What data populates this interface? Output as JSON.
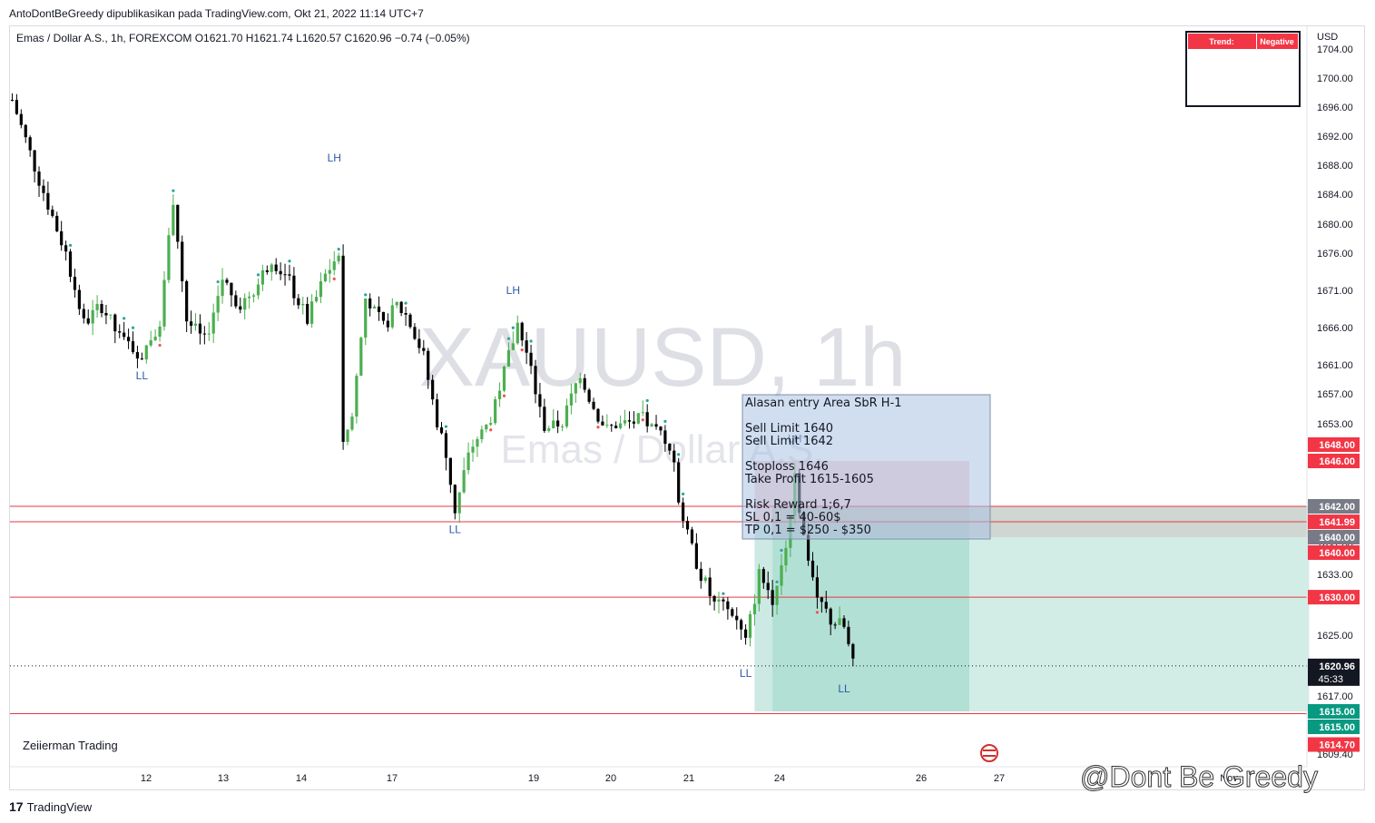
{
  "header": {
    "publisher_line": "AntoDontBeGreedy dipublikasikan pada TradingView.com, Okt 21, 2022 11:14 UTC+7"
  },
  "legend": {
    "symbol_line": "Emas / Dollar A.S., 1h, FOREXCOM  O1621.70  H1621.74  L1620.57  C1620.96  −0.74 (−0.05%)"
  },
  "watermark": {
    "symbol": "XAUUSD, 1h",
    "name": "Emas / Dollar A.S."
  },
  "trend_table": {
    "label": "Trend:",
    "value": "Negative",
    "color": "#f23645"
  },
  "currency_label": "USD",
  "author_label": "Zeiierman Trading",
  "footer": {
    "brand": "TradingView",
    "credit": "@Dont Be Greedy"
  },
  "note_box": {
    "lines": [
      "Alasan entry Area SbR H-1",
      "",
      "Sell Limit 1640",
      "Sell Limit 1642",
      "",
      "Stoploss 1646",
      "Take Profit 1615-1605",
      "",
      "Risk Reward 1;6,7",
      "SL 0,1 = 40-60$",
      "TP 0,1 = $250 - $350"
    ]
  },
  "colors": {
    "up": "#4caf50",
    "down": "#000000",
    "red_line": "#e53946",
    "label_red": "#f23645",
    "label_green": "#089981",
    "label_gray": "#787b86",
    "label_dark": "#131722"
  },
  "chart_data": {
    "type": "candlestick",
    "title": "XAUUSD, 1h",
    "x_ticks": [
      "12",
      "13",
      "14",
      "17",
      "19",
      "20",
      "21",
      "24",
      "26",
      "27",
      "Nov"
    ],
    "y_ticks": [
      1704.0,
      1700.0,
      1696.0,
      1692.0,
      1688.0,
      1684.0,
      1680.0,
      1676.0,
      1671.0,
      1666.0,
      1661.0,
      1657.0,
      1653.0,
      1637.0,
      1633.0,
      1625.0,
      1617.0,
      1609.4
    ],
    "y_range": [
      1608,
      1705
    ],
    "last_price": 1620.96,
    "countdown": "45:33",
    "horizontal_lines": [
      1640.0,
      1642.0,
      1630.0,
      1614.7
    ],
    "price_labels": [
      {
        "value": 1648.0,
        "kind": "red"
      },
      {
        "value": 1646.0,
        "kind": "red"
      },
      {
        "value": 1642.0,
        "kind": "gray"
      },
      {
        "value": 1641.99,
        "kind": "red"
      },
      {
        "value": 1640.0,
        "kind": "gray"
      },
      {
        "value": 1640.0,
        "kind": "red"
      },
      {
        "value": 1630.0,
        "kind": "red"
      },
      {
        "value": 1620.96,
        "kind": "dark"
      },
      {
        "value": 1615.0,
        "kind": "green"
      },
      {
        "value": 1615.0,
        "kind": "green"
      },
      {
        "value": 1614.7,
        "kind": "red"
      }
    ],
    "swing_labels": [
      {
        "text": "LH",
        "index": 72,
        "price": 1688.5
      },
      {
        "text": "LL",
        "index": 29,
        "price": 1659.0
      },
      {
        "text": "LH",
        "index": 112,
        "price": 1670.5
      },
      {
        "text": "LL",
        "index": 99,
        "price": 1638.5
      },
      {
        "text": "LH",
        "index": 175,
        "price": 1648.5
      },
      {
        "text": "LL",
        "index": 164,
        "price": 1619.5
      },
      {
        "text": "LL",
        "index": 186,
        "price": 1617.5
      }
    ],
    "positions": [
      {
        "entry": 1640.0,
        "stop": 1646.0,
        "target": 1615.0,
        "start_index": 166,
        "end_index": 214
      },
      {
        "entry": 1642.0,
        "stop": 1641.99,
        "target": 1615.0,
        "start_index": 170,
        "end_index": 290
      }
    ],
    "anchor_points": [
      {
        "index": 0,
        "price": 1697.0
      },
      {
        "index": 6,
        "price": 1686.0
      },
      {
        "index": 12,
        "price": 1676.0
      },
      {
        "index": 16,
        "price": 1666.5
      },
      {
        "index": 20,
        "price": 1669.0
      },
      {
        "index": 24,
        "price": 1664.5
      },
      {
        "index": 29,
        "price": 1662.5
      },
      {
        "index": 33,
        "price": 1667.0
      },
      {
        "index": 36,
        "price": 1683.5
      },
      {
        "index": 39,
        "price": 1667.0
      },
      {
        "index": 43,
        "price": 1664.0
      },
      {
        "index": 47,
        "price": 1672.5
      },
      {
        "index": 51,
        "price": 1669.0
      },
      {
        "index": 55,
        "price": 1672.0
      },
      {
        "index": 58,
        "price": 1675.5
      },
      {
        "index": 62,
        "price": 1672.0
      },
      {
        "index": 66,
        "price": 1667.0
      },
      {
        "index": 70,
        "price": 1673.0
      },
      {
        "index": 73,
        "price": 1676.0
      },
      {
        "index": 74,
        "price": 1649.0
      },
      {
        "index": 76,
        "price": 1654.0
      },
      {
        "index": 79,
        "price": 1670.0
      },
      {
        "index": 83,
        "price": 1666.0
      },
      {
        "index": 86,
        "price": 1669.0
      },
      {
        "index": 89,
        "price": 1667.0
      },
      {
        "index": 92,
        "price": 1662.0
      },
      {
        "index": 95,
        "price": 1653.0
      },
      {
        "index": 99,
        "price": 1641.5
      },
      {
        "index": 103,
        "price": 1648.0
      },
      {
        "index": 107,
        "price": 1654.0
      },
      {
        "index": 110,
        "price": 1660.0
      },
      {
        "index": 113,
        "price": 1666.5
      },
      {
        "index": 116,
        "price": 1660.0
      },
      {
        "index": 119,
        "price": 1652.0
      },
      {
        "index": 123,
        "price": 1653.0
      },
      {
        "index": 127,
        "price": 1660.0
      },
      {
        "index": 130,
        "price": 1655.0
      },
      {
        "index": 133,
        "price": 1652.0
      },
      {
        "index": 137,
        "price": 1653.0
      },
      {
        "index": 141,
        "price": 1653.5
      },
      {
        "index": 145,
        "price": 1651.0
      },
      {
        "index": 148,
        "price": 1645.0
      },
      {
        "index": 151,
        "price": 1638.0
      },
      {
        "index": 154,
        "price": 1633.0
      },
      {
        "index": 157,
        "price": 1629.0
      },
      {
        "index": 161,
        "price": 1628.0
      },
      {
        "index": 164,
        "price": 1624.0
      },
      {
        "index": 167,
        "price": 1633.0
      },
      {
        "index": 170,
        "price": 1630.0
      },
      {
        "index": 173,
        "price": 1637.0
      },
      {
        "index": 175,
        "price": 1645.5
      },
      {
        "index": 177,
        "price": 1638.0
      },
      {
        "index": 180,
        "price": 1630.0
      },
      {
        "index": 183,
        "price": 1627.0
      },
      {
        "index": 186,
        "price": 1626.0
      },
      {
        "index": 188,
        "price": 1620.96
      }
    ]
  }
}
